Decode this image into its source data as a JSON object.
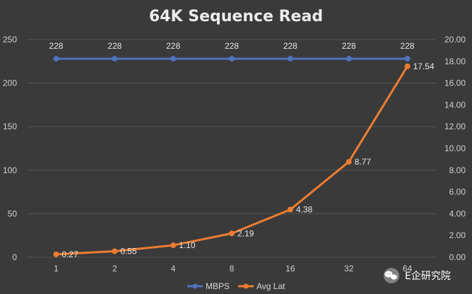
{
  "chart_data": {
    "type": "line",
    "title": "64K Sequence Read",
    "categories": [
      "1",
      "2",
      "4",
      "8",
      "16",
      "32",
      "64"
    ],
    "series": [
      {
        "name": "MBPS",
        "axis": "left",
        "color": "#4f72be",
        "values": [
          228,
          228,
          228,
          228,
          228,
          228,
          228
        ],
        "labels": [
          "228",
          "228",
          "228",
          "228",
          "228",
          "228",
          "228"
        ],
        "label_position": "above"
      },
      {
        "name": "Avg Lat",
        "axis": "right",
        "color": "#ed7d31",
        "values": [
          0.27,
          0.55,
          1.1,
          2.19,
          4.38,
          8.77,
          17.54
        ],
        "labels": [
          "0.27",
          "0.55",
          "1.10",
          "2.19",
          "4.38",
          "8.77",
          "17.54"
        ],
        "label_position": "right"
      }
    ],
    "y_left": {
      "lim": [
        0,
        250
      ],
      "ticks": [
        0,
        50,
        100,
        150,
        200,
        250
      ],
      "tick_labels": [
        "0",
        "50",
        "100",
        "150",
        "200",
        "250"
      ]
    },
    "y_right": {
      "lim": [
        0,
        20
      ],
      "ticks": [
        0,
        2,
        4,
        6,
        8,
        10,
        12,
        14,
        16,
        18,
        20
      ],
      "tick_labels": [
        "0.00",
        "2.00",
        "4.00",
        "6.00",
        "8.00",
        "10.00",
        "12.00",
        "14.00",
        "16.00",
        "18.00",
        "20.00"
      ]
    },
    "grid": true,
    "legend": "bottom-center"
  },
  "watermark": {
    "text": "E企研究院",
    "icon": "wechat-icon"
  },
  "colors": {
    "background": "#3a3a3a",
    "grid": "#555555",
    "text": "#cfcfcf"
  }
}
